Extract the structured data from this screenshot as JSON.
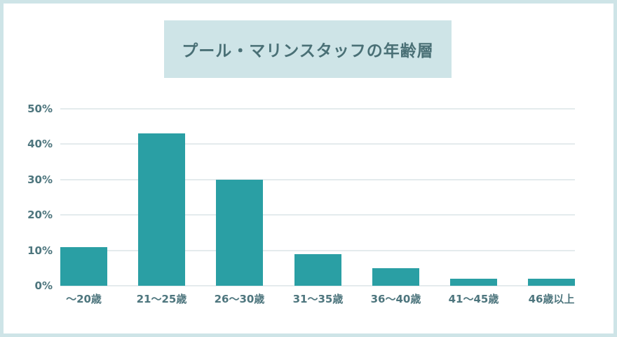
{
  "frame": {
    "border_color": "#cee4e7",
    "background_color": "#ffffff"
  },
  "title": {
    "text": "プール・マリンスタッフの年齢層",
    "background_color": "#cee4e7",
    "text_color": "#4a7076"
  },
  "chart_data": {
    "type": "bar",
    "title": "プール・マリンスタッフの年齢層",
    "categories": [
      "～20歳",
      "21～25歳",
      "26～30歳",
      "31～35歳",
      "36～40歳",
      "41～45歳",
      "46歳以上"
    ],
    "values": [
      11,
      43,
      30,
      9,
      5,
      2,
      2
    ],
    "unit": "%",
    "xlabel": "",
    "ylabel": "",
    "ylim": [
      0,
      50
    ],
    "yticks": [
      0,
      10,
      20,
      30,
      40,
      50
    ],
    "ytick_labels": [
      "0%",
      "10%",
      "20%",
      "30%",
      "40%",
      "50%"
    ],
    "grid": "horizontal",
    "legend": "none",
    "bar_color": "#2a9fa4",
    "tick_label_color": "#4e767e",
    "gridline_color": "#e4ebed"
  }
}
